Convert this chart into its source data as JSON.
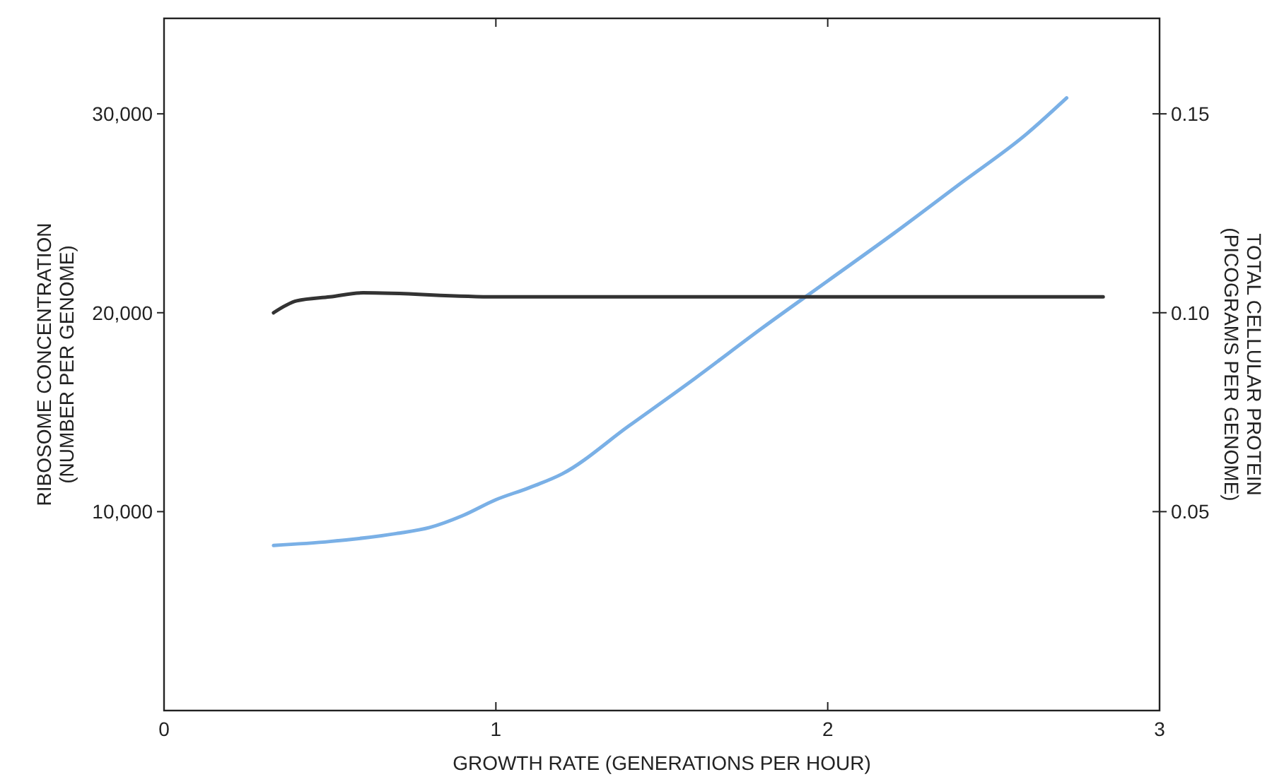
{
  "chart_data": {
    "type": "line",
    "xlabel": "GROWTH RATE (GENERATIONS PER HOUR)",
    "ylabel": "RIBOSOME CONCENTRATION\n(NUMBER PER GENOME)",
    "y2label": "TOTAL CELLULAR PROTEIN\n(PICOGRAMS PER GENOME)",
    "xlim": [
      0,
      3
    ],
    "xticks": [
      0,
      1,
      2,
      3
    ],
    "ylim": [
      0,
      34800
    ],
    "yticks": [
      {
        "value": 10000,
        "label": "10,000"
      },
      {
        "value": 20000,
        "label": "20,000"
      },
      {
        "value": 30000,
        "label": "30,000"
      }
    ],
    "y2lim": [
      0,
      0.174
    ],
    "y2ticks": [
      0.05,
      {
        "value": 0.1,
        "label": "0.10"
      },
      0.15
    ],
    "series": [
      {
        "color": "#7ab0e6",
        "x": [
          0.33,
          0.5,
          0.7,
          0.8,
          0.9,
          1.0,
          1.1,
          1.2,
          1.4,
          1.6,
          1.8,
          2.0,
          2.2,
          2.4,
          2.6,
          2.72
        ],
        "values": [
          8300,
          8500,
          8900,
          9200,
          9800,
          10600,
          11200,
          11900,
          14300,
          16700,
          19200,
          21600,
          24000,
          26500,
          29000,
          30800
        ]
      },
      {
        "color": "#333333",
        "axis": "y2",
        "x": [
          0.33,
          0.4,
          0.5,
          0.6,
          1.0,
          1.5,
          2.0,
          2.5,
          2.83
        ],
        "values": [
          0.1,
          0.103,
          0.104,
          0.105,
          0.104,
          0.104,
          0.104,
          0.104,
          0.104
        ]
      }
    ]
  }
}
